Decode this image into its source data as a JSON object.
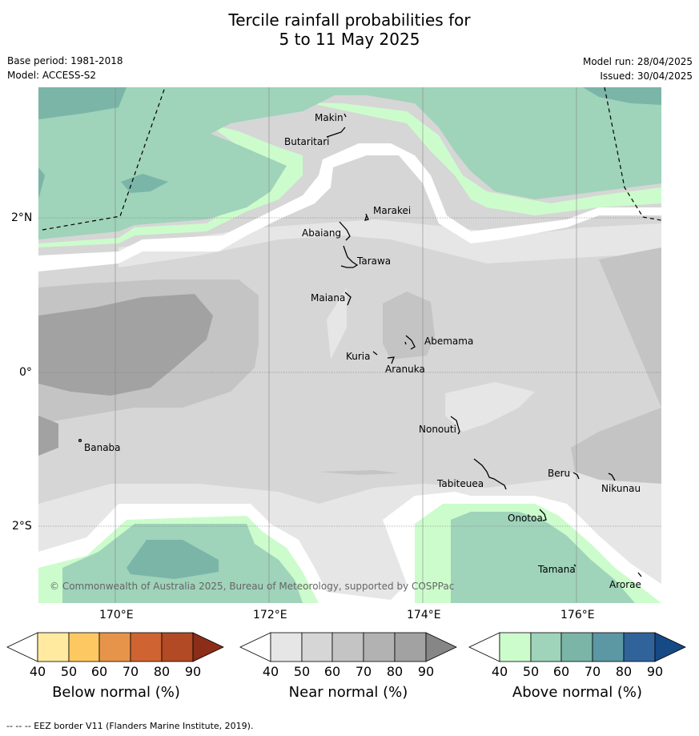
{
  "title": {
    "line1": "Tercile rainfall probabilities for",
    "line2": "5 to 11 May 2025"
  },
  "header": {
    "base_period": "Base period: 1981-2018",
    "model": "Model: ACCESS-S2",
    "model_run": "Model run: 28/04/2025",
    "issued": "Issued: 30/04/2025"
  },
  "map": {
    "lat_labels": [
      "2°N",
      "0°",
      "2°S"
    ],
    "lon_labels": [
      "170°E",
      "172°E",
      "174°E",
      "176°E"
    ],
    "places": [
      "Makin",
      "Butaritari",
      "Marakei",
      "Abaiang",
      "Tarawa",
      "Maiana",
      "Abemama",
      "Kuria",
      "Aranuka",
      "Banaba",
      "Nonouti",
      "Tabiteuea",
      "Beru",
      "Nikunau",
      "Onotoa",
      "Tamana",
      "Arorae"
    ],
    "copyright": "© Commonwealth of Australia 2025, Bureau of Meteorology, supported by COSPPac"
  },
  "colorbars": [
    {
      "title": "Below normal (%)",
      "ticks": [
        "40",
        "50",
        "60",
        "70",
        "80",
        "90"
      ],
      "colors": [
        "#ffffff",
        "#ffea9f",
        "#fdc862",
        "#e6944a",
        "#d06332",
        "#b14a25",
        "#8b2d19"
      ]
    },
    {
      "title": "Near normal (%)",
      "ticks": [
        "40",
        "50",
        "60",
        "70",
        "80",
        "90"
      ],
      "colors": [
        "#ffffff",
        "#e6e6e6",
        "#d6d6d6",
        "#c4c4c4",
        "#b2b2b2",
        "#a2a2a2",
        "#868686"
      ]
    },
    {
      "title": "Above normal (%)",
      "ticks": [
        "40",
        "50",
        "60",
        "70",
        "80",
        "90"
      ],
      "colors": [
        "#ffffff",
        "#ccfccc",
        "#9fd3ba",
        "#7ab5a8",
        "#5c97a4",
        "#31639b",
        "#164a85"
      ]
    }
  ],
  "footnote": "-- -- -- EEZ border V11 (Flanders Marine Institute, 2019)."
}
